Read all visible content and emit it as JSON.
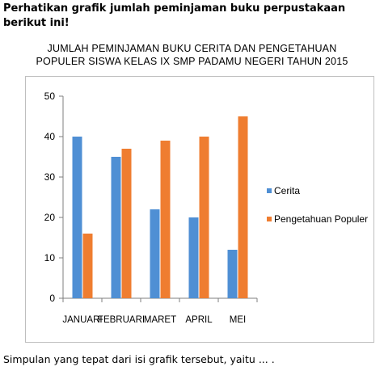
{
  "intro": {
    "text": "Perhatikan grafik jumlah peminjaman buku  perpustakaan berikut ini!"
  },
  "question": {
    "text": "Simpulan yang tepat dari isi grafik tersebut, yaitu ... ."
  },
  "chart_data": {
    "type": "bar",
    "title_line1": "JUMLAH PEMINJAMAN BUKU CERITA DAN PENGETAHUAN",
    "title_line2": "POPULER SISWA KELAS IX SMP PADAMU NEGERI TAHUN 2015",
    "categories": [
      "JANUARI",
      "FEBRUARI",
      "MARET",
      "APRIL",
      "MEI"
    ],
    "series": [
      {
        "name": "Cerita",
        "values": [
          40,
          35,
          22,
          20,
          12
        ],
        "color": "#4f8fd4"
      },
      {
        "name": "Pengetahuan Populer",
        "values": [
          16,
          37,
          39,
          40,
          45
        ],
        "color": "#ef7d30"
      }
    ],
    "ylim": [
      0,
      50
    ],
    "yticks": [
      "0",
      "10",
      "20",
      "30",
      "40",
      "50"
    ],
    "grid": false,
    "legend_position": "right"
  }
}
